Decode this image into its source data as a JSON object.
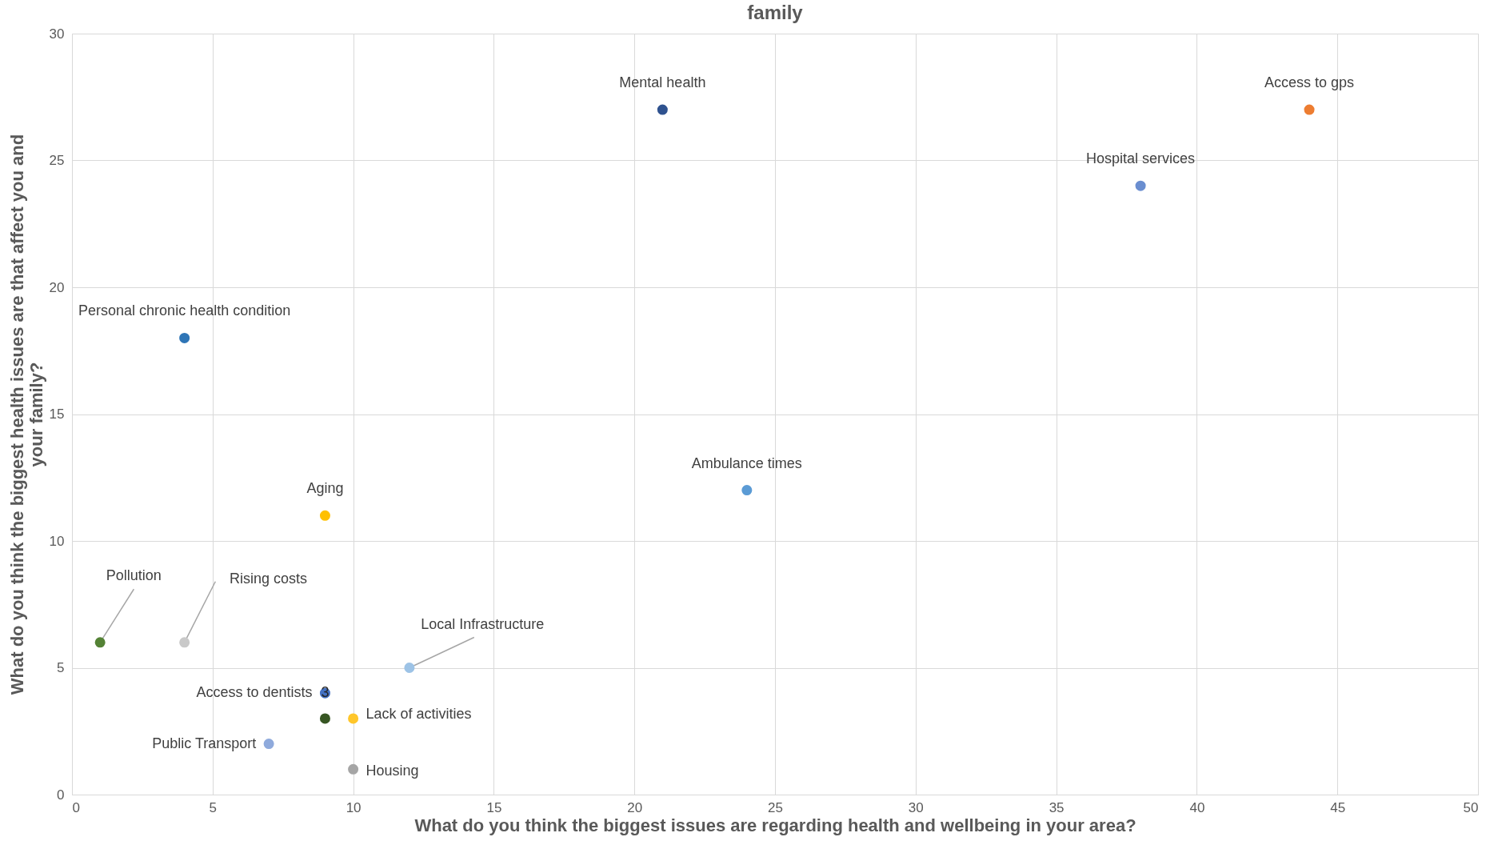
{
  "chart_data": {
    "type": "scatter",
    "title": "family",
    "xlabel": "What do you think the biggest issues are regarding health and wellbeing in your area?",
    "ylabel": "What do you think the biggest health issues are that affect you and your family?",
    "xlim": [
      0,
      50
    ],
    "xticks": [
      0,
      5,
      10,
      15,
      20,
      25,
      30,
      35,
      40,
      45,
      50
    ],
    "ylim": [
      0,
      30
    ],
    "yticks": [
      0,
      5,
      10,
      15,
      20,
      25,
      30
    ],
    "grid": true,
    "legend": false,
    "marker": "circle",
    "annotations": [
      {
        "text": "3",
        "x": 9,
        "y": 4
      }
    ],
    "series": [
      {
        "name": "Mental health",
        "color": "#2f528f",
        "x": [
          21
        ],
        "values": [
          27
        ]
      },
      {
        "name": "Access to gps",
        "color": "#ed7d31",
        "x": [
          44
        ],
        "values": [
          27
        ]
      },
      {
        "name": "Hospital services",
        "color": "#6a8ed0",
        "x": [
          38
        ],
        "values": [
          24
        ]
      },
      {
        "name": "Personal chronic health condition",
        "color": "#2e75b6",
        "x": [
          4
        ],
        "values": [
          18
        ]
      },
      {
        "name": "Ambulance times",
        "color": "#5b9bd5",
        "x": [
          24
        ],
        "values": [
          12
        ]
      },
      {
        "name": "Aging",
        "color": "#ffc000",
        "x": [
          9
        ],
        "values": [
          11
        ]
      },
      {
        "name": "Pollution",
        "color": "#548235",
        "x": [
          1
        ],
        "values": [
          6
        ]
      },
      {
        "name": "Rising costs",
        "color": "#c9c9c9",
        "x": [
          4
        ],
        "values": [
          6
        ]
      },
      {
        "name": "Local Infrastructure",
        "color": "#9dc3e6",
        "x": [
          12
        ],
        "values": [
          5
        ]
      },
      {
        "name": "Access to dentists",
        "color": "#4472c4",
        "x": [
          9
        ],
        "values": [
          4
        ]
      },
      {
        "color": "#375623",
        "x": [
          9
        ],
        "values": [
          3
        ]
      },
      {
        "name": "Lack of activities",
        "color": "#ffc62a",
        "x": [
          10
        ],
        "values": [
          3
        ]
      },
      {
        "name": "Public Transport",
        "color": "#8faadc",
        "x": [
          7
        ],
        "values": [
          2
        ]
      },
      {
        "name": "Housing",
        "color": "#a5a5a5",
        "x": [
          10
        ],
        "values": [
          1
        ]
      }
    ]
  }
}
